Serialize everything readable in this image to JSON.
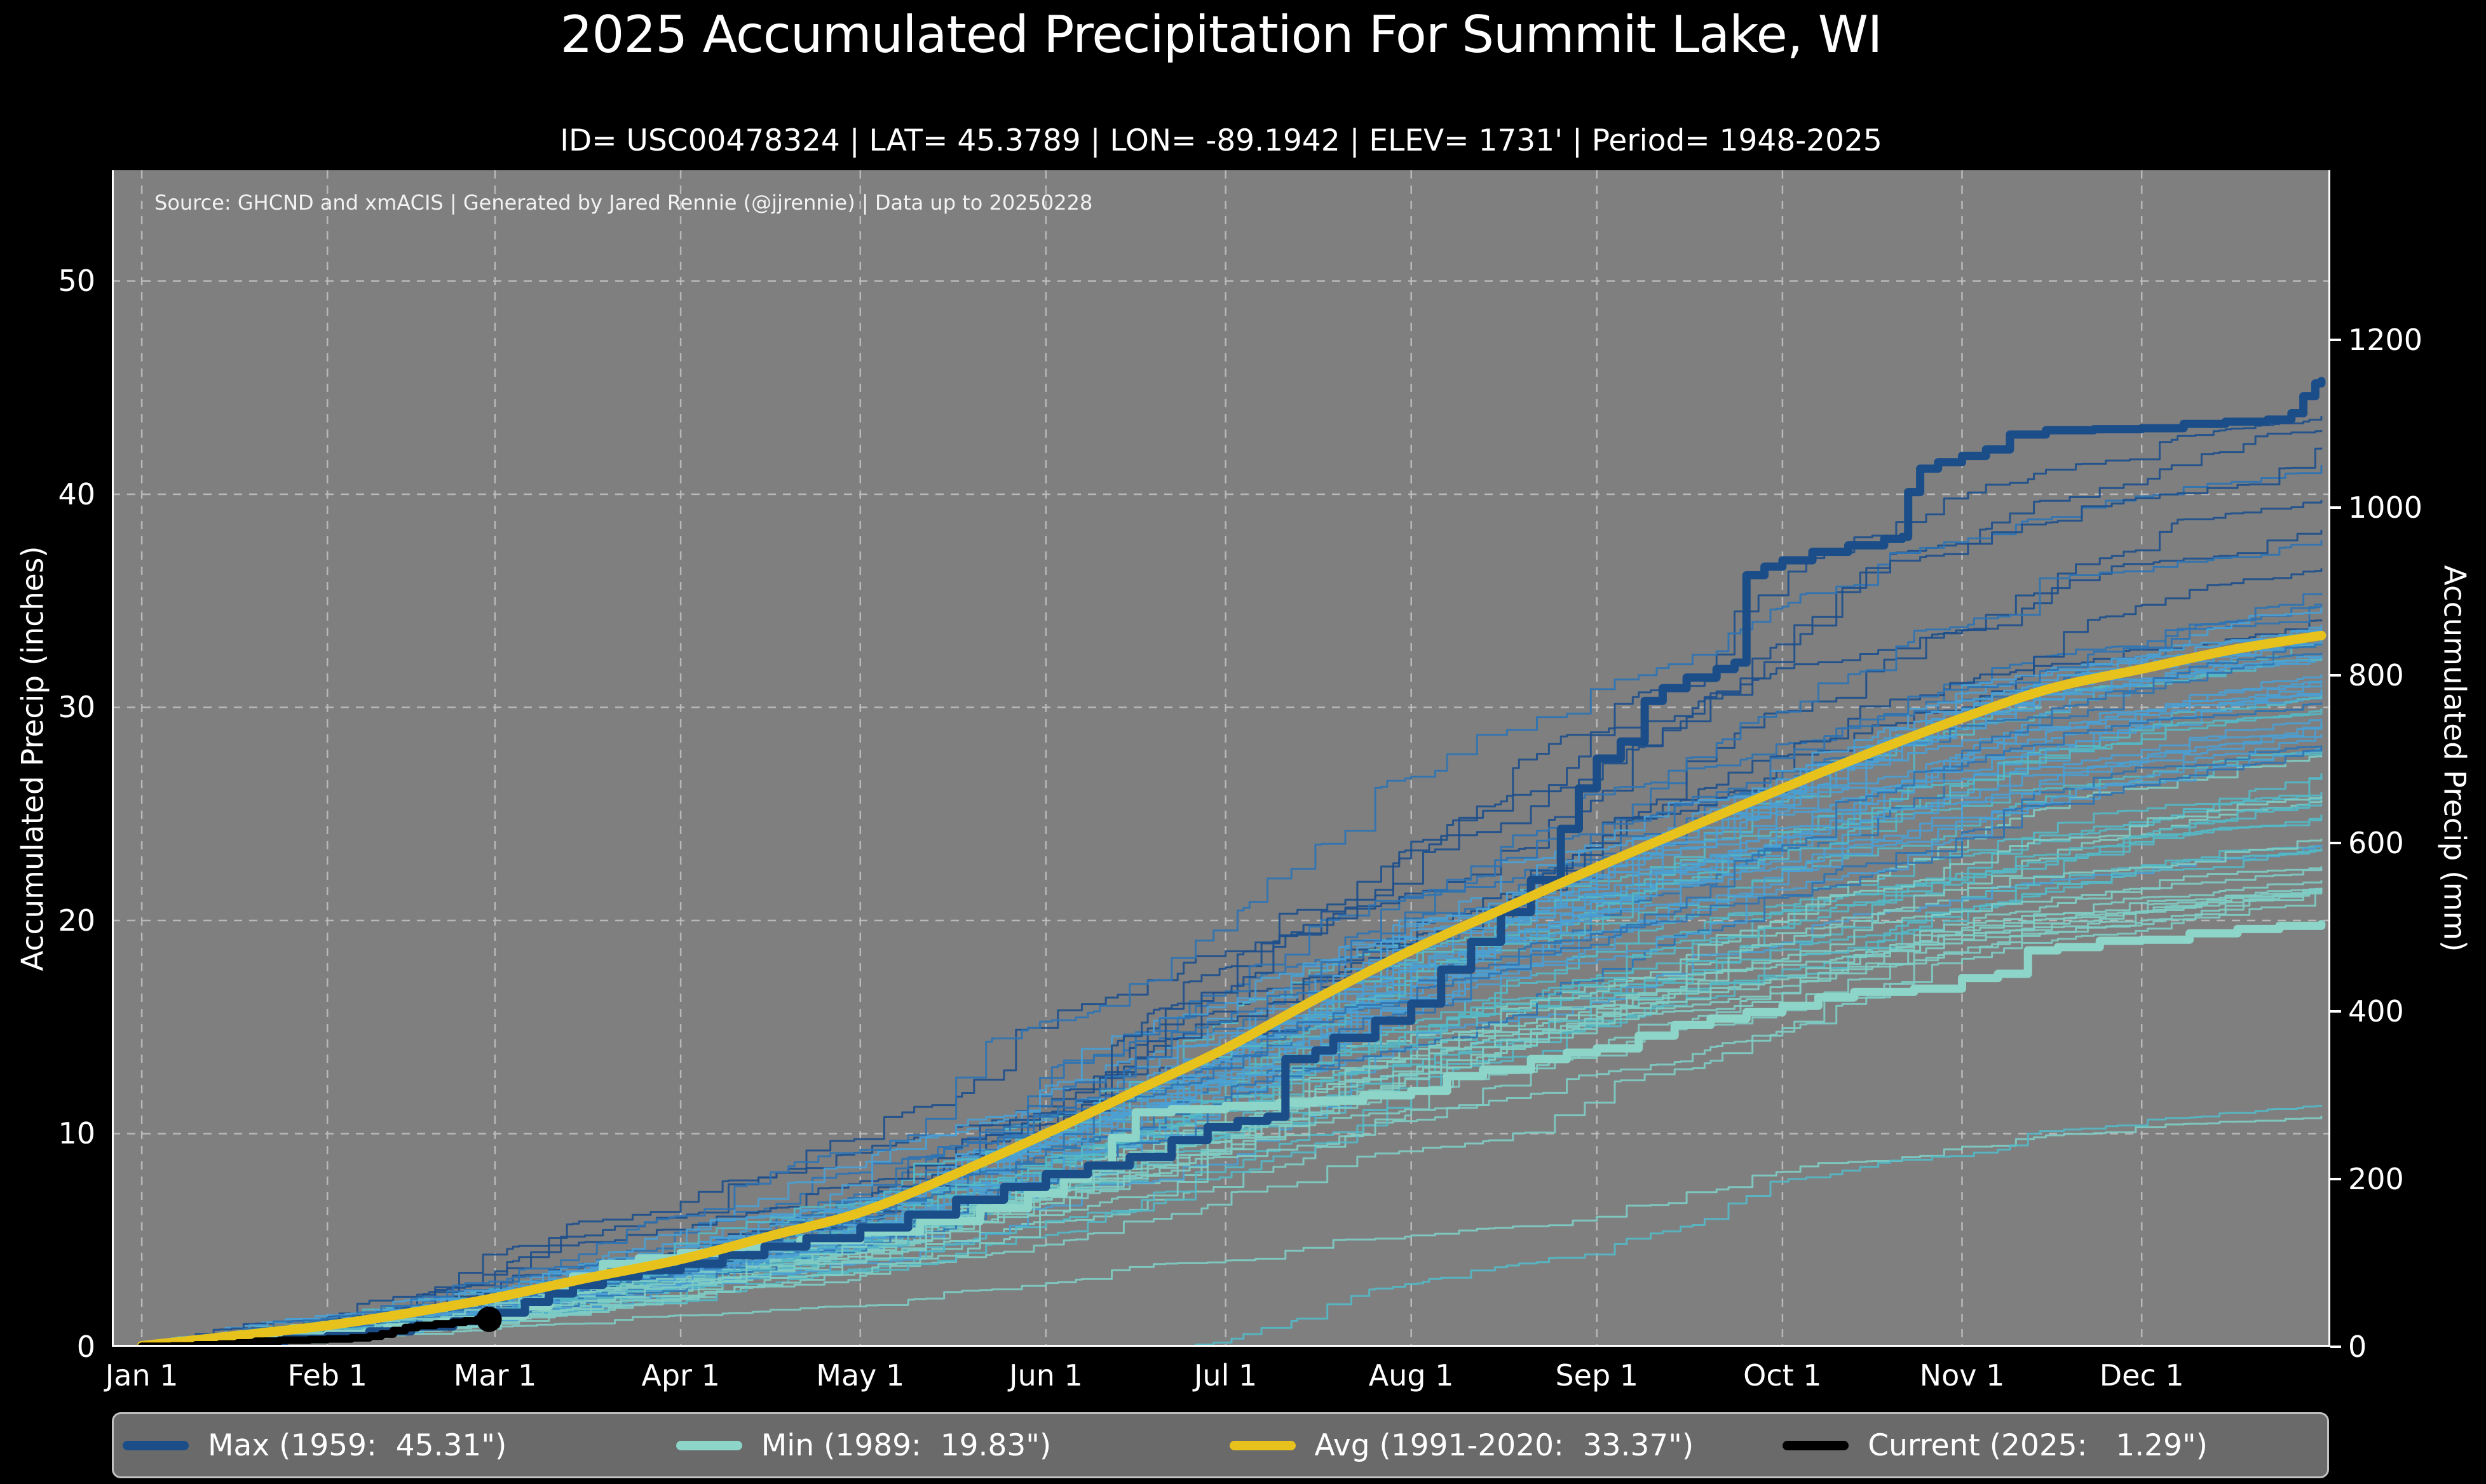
{
  "page": {
    "background": "#000000",
    "text_color": "#ffffff"
  },
  "header": {
    "title": "2025 Accumulated Precipitation For Summit Lake, WI",
    "subtitle": "ID= USC00478324 | LAT= 45.3789 | LON= -89.1942 | ELEV= 1731' | Period= 1948-2025"
  },
  "plot": {
    "source_note": "Source: GHCND and xmACIS | Generated by Jared Rennie (@jjrennie) | Data up to 20250228",
    "background": "#7f7f7f",
    "grid_color": "#bfbfbf",
    "spine_color": "#ffffff",
    "x_axis": {
      "tick_labels": [
        "Jan 1",
        "Feb 1",
        "Mar 1",
        "Apr 1",
        "May 1",
        "Jun 1",
        "Jul 1",
        "Aug 1",
        "Sep 1",
        "Oct 1",
        "Nov 1",
        "Dec 1"
      ],
      "tick_days": [
        0,
        31,
        59,
        90,
        120,
        151,
        181,
        212,
        243,
        274,
        304,
        334
      ]
    },
    "y_axis_left": {
      "label": "Accumulated Precip (inches)",
      "ticks": [
        0,
        10,
        20,
        30,
        40,
        50
      ]
    },
    "y_axis_right": {
      "label": "Accumulated Precip (mm)",
      "ticks": [
        0,
        200,
        400,
        600,
        800,
        1000,
        1200
      ]
    }
  },
  "chart_data": {
    "type": "line",
    "title": "2025 Accumulated Precipitation For Summit Lake, WI",
    "xlabel": "",
    "ylabel_left": "Accumulated Precip (inches)",
    "ylabel_right": "Accumulated Precip (mm)",
    "x_unit": "day_of_year",
    "xlim_days": [
      -5,
      365.5
    ],
    "ylim_inches": [
      0,
      55.2
    ],
    "grid": true,
    "legend_position": "bottom",
    "series": [
      {
        "id": "max",
        "name": "Max (1959:  45.31\")",
        "year": 1959,
        "total_inches": 45.31,
        "color": "#1b4e89",
        "width": 13,
        "style": "step",
        "points": [
          [
            0,
            0.03
          ],
          [
            8,
            0.12
          ],
          [
            16,
            0.25
          ],
          [
            24,
            0.38
          ],
          [
            31,
            0.5
          ],
          [
            38,
            0.72
          ],
          [
            45,
            0.95
          ],
          [
            52,
            1.2
          ],
          [
            59,
            1.6
          ],
          [
            64,
            2.1
          ],
          [
            68,
            2.5
          ],
          [
            72,
            2.9
          ],
          [
            77,
            3.3
          ],
          [
            83,
            3.6
          ],
          [
            90,
            3.9
          ],
          [
            97,
            4.3
          ],
          [
            104,
            4.7
          ],
          [
            111,
            5.1
          ],
          [
            120,
            5.6
          ],
          [
            128,
            6.2
          ],
          [
            136,
            6.9
          ],
          [
            144,
            7.5
          ],
          [
            151,
            8.1
          ],
          [
            158,
            8.5
          ],
          [
            165,
            8.9
          ],
          [
            172,
            9.7
          ],
          [
            178,
            10.3
          ],
          [
            183,
            10.6
          ],
          [
            188,
            10.8
          ],
          [
            191,
            13.5
          ],
          [
            196,
            13.9
          ],
          [
            199,
            14.5
          ],
          [
            206,
            15.3
          ],
          [
            212,
            16.1
          ],
          [
            217,
            17.7
          ],
          [
            222,
            19.0
          ],
          [
            227,
            20.4
          ],
          [
            232,
            21.9
          ],
          [
            237,
            24.3
          ],
          [
            240,
            26.2
          ],
          [
            243,
            27.6
          ],
          [
            247,
            28.4
          ],
          [
            251,
            30.3
          ],
          [
            254,
            30.9
          ],
          [
            258,
            31.4
          ],
          [
            263,
            31.8
          ],
          [
            266,
            32.1
          ],
          [
            268,
            36.2
          ],
          [
            271,
            36.6
          ],
          [
            274,
            36.9
          ],
          [
            279,
            37.3
          ],
          [
            285,
            37.6
          ],
          [
            291,
            37.9
          ],
          [
            294,
            38.0
          ],
          [
            295,
            40.1
          ],
          [
            297,
            41.2
          ],
          [
            300,
            41.5
          ],
          [
            304,
            41.8
          ],
          [
            308,
            42.1
          ],
          [
            312,
            42.8
          ],
          [
            318,
            43.0
          ],
          [
            326,
            43.05
          ],
          [
            334,
            43.1
          ],
          [
            341,
            43.3
          ],
          [
            348,
            43.4
          ],
          [
            355,
            43.5
          ],
          [
            359,
            43.8
          ],
          [
            361,
            44.6
          ],
          [
            363,
            45.2
          ],
          [
            364,
            45.31
          ]
        ]
      },
      {
        "id": "min",
        "name": "Min (1989:  19.83\")",
        "year": 1989,
        "total_inches": 19.83,
        "color": "#8ed5c9",
        "width": 13,
        "style": "step",
        "points": [
          [
            0,
            0.03
          ],
          [
            10,
            0.15
          ],
          [
            20,
            0.35
          ],
          [
            31,
            0.6
          ],
          [
            41,
            0.9
          ],
          [
            50,
            1.15
          ],
          [
            59,
            1.45
          ],
          [
            64,
            1.9
          ],
          [
            68,
            2.6
          ],
          [
            72,
            3.3
          ],
          [
            77,
            3.9
          ],
          [
            83,
            4.15
          ],
          [
            90,
            4.4
          ],
          [
            100,
            4.7
          ],
          [
            110,
            5.0
          ],
          [
            120,
            5.4
          ],
          [
            130,
            5.9
          ],
          [
            140,
            6.5
          ],
          [
            148,
            7.2
          ],
          [
            154,
            7.9
          ],
          [
            158,
            8.5
          ],
          [
            162,
            9.8
          ],
          [
            166,
            11.0
          ],
          [
            172,
            11.15
          ],
          [
            181,
            11.3
          ],
          [
            190,
            11.45
          ],
          [
            196,
            11.55
          ],
          [
            204,
            11.8
          ],
          [
            212,
            12.0
          ],
          [
            218,
            12.7
          ],
          [
            224,
            13.0
          ],
          [
            232,
            13.5
          ],
          [
            238,
            13.8
          ],
          [
            243,
            14.0
          ],
          [
            250,
            14.6
          ],
          [
            256,
            15.1
          ],
          [
            262,
            15.4
          ],
          [
            268,
            15.7
          ],
          [
            274,
            16.0
          ],
          [
            280,
            16.4
          ],
          [
            286,
            16.65
          ],
          [
            296,
            16.8
          ],
          [
            304,
            17.3
          ],
          [
            310,
            17.5
          ],
          [
            315,
            18.6
          ],
          [
            320,
            18.75
          ],
          [
            327,
            19.05
          ],
          [
            334,
            19.1
          ],
          [
            342,
            19.4
          ],
          [
            350,
            19.6
          ],
          [
            357,
            19.75
          ],
          [
            364,
            19.83
          ]
        ]
      },
      {
        "id": "avg",
        "name": "Avg (1991-2020:  33.37\")",
        "period": "1991-2020",
        "total_inches": 33.37,
        "color": "#e8c21c",
        "width": 15,
        "style": "smooth",
        "points": [
          [
            0,
            0.05
          ],
          [
            15,
            0.5
          ],
          [
            31,
            1.0
          ],
          [
            45,
            1.6
          ],
          [
            59,
            2.3
          ],
          [
            74,
            3.2
          ],
          [
            90,
            4.1
          ],
          [
            105,
            5.2
          ],
          [
            120,
            6.3
          ],
          [
            135,
            8.0
          ],
          [
            151,
            10.0
          ],
          [
            166,
            12.0
          ],
          [
            181,
            14.0
          ],
          [
            196,
            16.3
          ],
          [
            212,
            18.6
          ],
          [
            227,
            20.5
          ],
          [
            243,
            22.5
          ],
          [
            258,
            24.3
          ],
          [
            274,
            26.2
          ],
          [
            289,
            27.9
          ],
          [
            304,
            29.5
          ],
          [
            319,
            30.9
          ],
          [
            334,
            31.8
          ],
          [
            349,
            32.7
          ],
          [
            364,
            33.37
          ]
        ]
      },
      {
        "id": "current",
        "name": "Current (2025:   1.29\")",
        "year": 2025,
        "total_inches": 1.29,
        "color": "#000000",
        "width": 12,
        "style": "step",
        "end_marker": true,
        "end_marker_radius": 20,
        "points": [
          [
            0,
            0.02
          ],
          [
            5,
            0.04
          ],
          [
            9,
            0.09
          ],
          [
            13,
            0.13
          ],
          [
            16,
            0.18
          ],
          [
            19,
            0.26
          ],
          [
            23,
            0.31
          ],
          [
            28,
            0.34
          ],
          [
            31,
            0.37
          ],
          [
            35,
            0.42
          ],
          [
            38,
            0.5
          ],
          [
            40,
            0.6
          ],
          [
            42,
            0.76
          ],
          [
            44,
            0.9
          ],
          [
            46,
            1.0
          ],
          [
            49,
            1.07
          ],
          [
            52,
            1.15
          ],
          [
            54,
            1.22
          ],
          [
            56,
            1.29
          ],
          [
            58,
            1.29
          ]
        ]
      }
    ],
    "background_ensemble": {
      "description": "Thin lines: one accumulated-precip trace per year, 1948-2024",
      "count": 71,
      "seed": 20250228,
      "final_range": [
        21.5,
        43.8
      ],
      "outliers": [
        [
          10.8,
          0
        ],
        [
          11.3,
          175
        ],
        [
          22.5,
          0
        ],
        [
          23.8,
          0
        ]
      ],
      "palette": [
        "#1d4f8c",
        "#2f74b3",
        "#4a9fd4",
        "#54b9c6",
        "#7fccc4"
      ],
      "line_width": 3,
      "opacity": 0.92
    }
  },
  "legend": {
    "background": "#6a6a6a",
    "border_color": "#c2c2c2",
    "text_color": "#ffffff",
    "entries": [
      {
        "label": "Max (1959:  45.31\")",
        "color": "#1b4e89"
      },
      {
        "label": "Min (1989:  19.83\")",
        "color": "#8ed5c9"
      },
      {
        "label": "Avg (1991-2020:  33.37\")",
        "color": "#e8c21c"
      },
      {
        "label": "Current (2025:   1.29\")",
        "color": "#000000"
      }
    ]
  }
}
